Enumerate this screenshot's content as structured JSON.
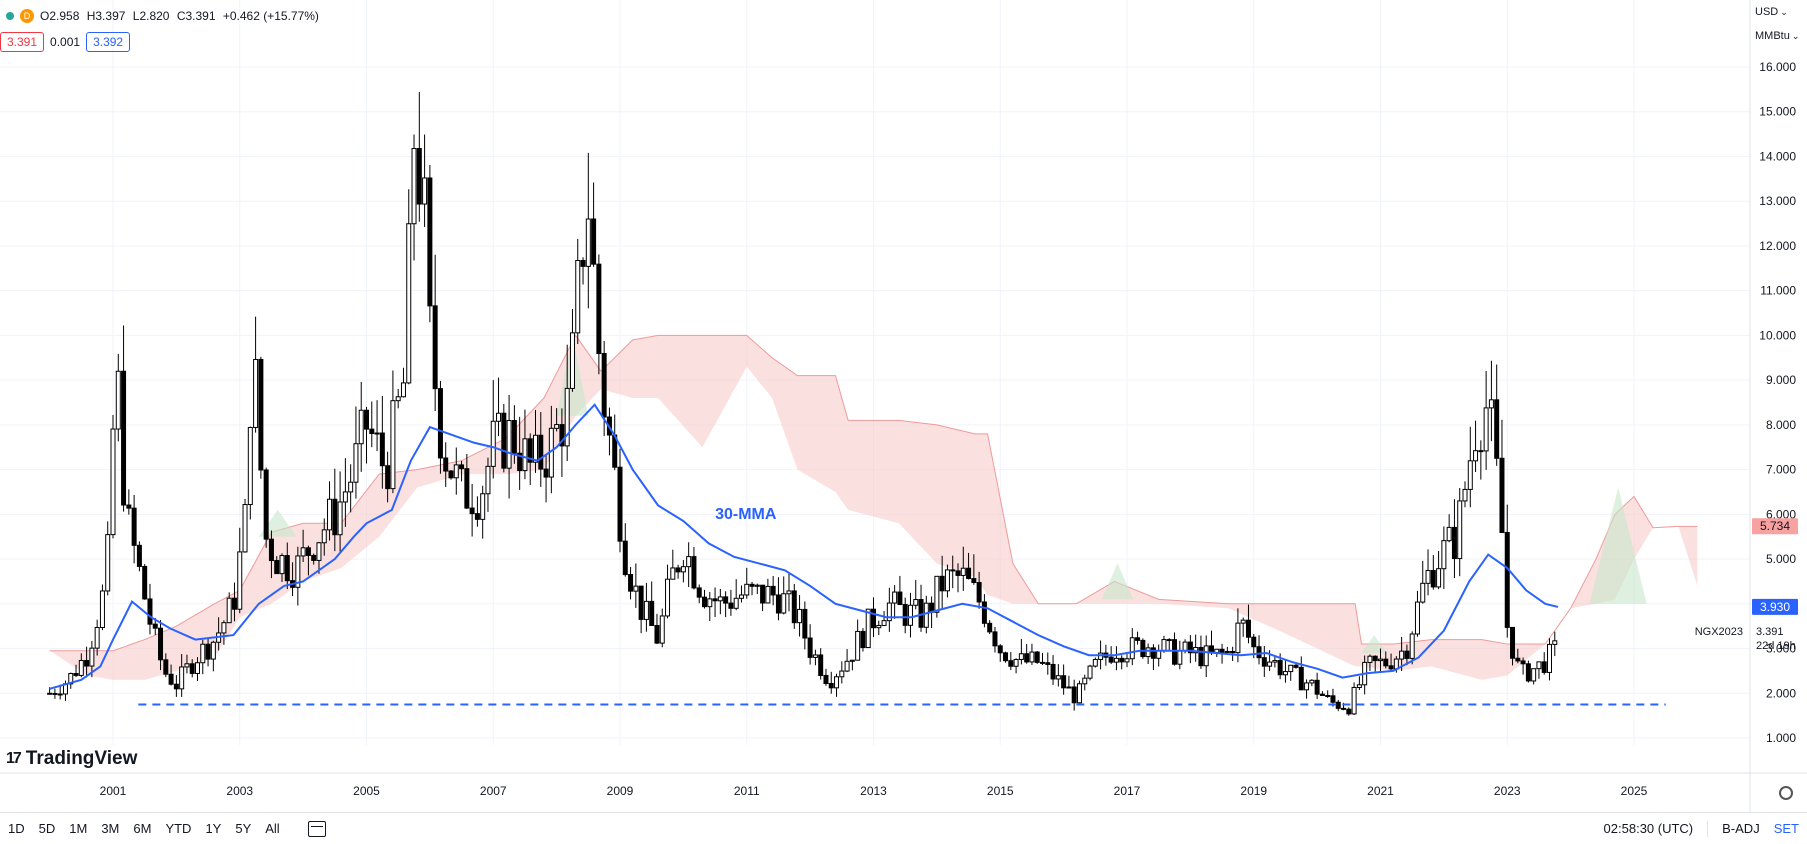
{
  "legend": {
    "interval_badge": "D",
    "open": "O2.958",
    "high": "H3.397",
    "low": "L2.820",
    "close": "C3.391",
    "change": "+0.462 (+15.77%)"
  },
  "quotes": {
    "bid": "3.391",
    "spread": "0.001",
    "ask": "3.392"
  },
  "units": {
    "currency": "USD",
    "unit": "MMBtu"
  },
  "colors": {
    "ma": "#2962ff",
    "cloud_red": "#f8c6c6",
    "cloud_green": "#c8e6c9",
    "candle": "#000000",
    "support": "#2962ff"
  },
  "chart_data": {
    "type": "candlestick",
    "x_labels": [
      "2001",
      "2003",
      "2005",
      "2007",
      "2009",
      "2011",
      "2013",
      "2015",
      "2017",
      "2019",
      "2021",
      "2023",
      "2025"
    ],
    "y_ticks": [
      "1.000",
      "2.000",
      "3.000",
      "4.000",
      "5.000",
      "6.000",
      "7.000",
      "8.000",
      "9.000",
      "10.000",
      "11.000",
      "12.000",
      "13.000",
      "14.000",
      "15.000",
      "16.000"
    ],
    "ylim": [
      1,
      16
    ],
    "xlim": [
      2000.0,
      2028.5
    ],
    "ma_label": "30-MMA",
    "support_level": 1.75,
    "symbol": "NGX2023",
    "last_price": "3.391",
    "countdown": "22d 19h",
    "ma_value_label": "3.930",
    "cloud_value_label": "5.734",
    "ma_series": [
      [
        2000.0,
        2.1
      ],
      [
        2000.5,
        2.3
      ],
      [
        2000.8,
        2.6
      ],
      [
        2001.0,
        3.2
      ],
      [
        2001.3,
        4.05
      ],
      [
        2001.6,
        3.7
      ],
      [
        2001.9,
        3.45
      ],
      [
        2002.3,
        3.2
      ],
      [
        2002.6,
        3.25
      ],
      [
        2002.9,
        3.3
      ],
      [
        2003.3,
        4.0
      ],
      [
        2003.7,
        4.4
      ],
      [
        2004.0,
        4.5
      ],
      [
        2004.5,
        5.0
      ],
      [
        2004.8,
        5.5
      ],
      [
        2005.0,
        5.8
      ],
      [
        2005.4,
        6.1
      ],
      [
        2005.7,
        7.2
      ],
      [
        2006.0,
        7.95
      ],
      [
        2006.4,
        7.75
      ],
      [
        2006.7,
        7.6
      ],
      [
        2007.0,
        7.5
      ],
      [
        2007.3,
        7.35
      ],
      [
        2007.7,
        7.2
      ],
      [
        2008.0,
        7.5
      ],
      [
        2008.3,
        8.0
      ],
      [
        2008.6,
        8.45
      ],
      [
        2008.9,
        7.8
      ],
      [
        2009.2,
        7.0
      ],
      [
        2009.6,
        6.2
      ],
      [
        2010.0,
        5.85
      ],
      [
        2010.4,
        5.35
      ],
      [
        2010.8,
        5.05
      ],
      [
        2011.2,
        4.9
      ],
      [
        2011.6,
        4.75
      ],
      [
        2012.0,
        4.4
      ],
      [
        2012.4,
        4.0
      ],
      [
        2012.8,
        3.85
      ],
      [
        2013.2,
        3.7
      ],
      [
        2013.6,
        3.7
      ],
      [
        2014.0,
        3.85
      ],
      [
        2014.4,
        4.0
      ],
      [
        2014.8,
        3.9
      ],
      [
        2015.2,
        3.6
      ],
      [
        2015.6,
        3.3
      ],
      [
        2016.0,
        3.05
      ],
      [
        2016.4,
        2.85
      ],
      [
        2016.8,
        2.85
      ],
      [
        2017.2,
        2.95
      ],
      [
        2017.6,
        2.95
      ],
      [
        2018.0,
        2.95
      ],
      [
        2018.4,
        2.9
      ],
      [
        2018.8,
        2.85
      ],
      [
        2019.2,
        2.9
      ],
      [
        2019.6,
        2.7
      ],
      [
        2020.0,
        2.55
      ],
      [
        2020.4,
        2.35
      ],
      [
        2020.8,
        2.45
      ],
      [
        2021.2,
        2.5
      ],
      [
        2021.6,
        2.8
      ],
      [
        2022.0,
        3.4
      ],
      [
        2022.4,
        4.5
      ],
      [
        2022.7,
        5.1
      ],
      [
        2023.0,
        4.8
      ],
      [
        2023.3,
        4.3
      ],
      [
        2023.6,
        4.0
      ],
      [
        2023.8,
        3.93
      ]
    ],
    "cloud_top": [
      [
        2000.0,
        2.95
      ],
      [
        2000.6,
        2.95
      ],
      [
        2001.0,
        2.95
      ],
      [
        2001.5,
        3.2
      ],
      [
        2002.0,
        3.5
      ],
      [
        2002.6,
        4.0
      ],
      [
        2003.0,
        4.3
      ],
      [
        2003.5,
        5.6
      ],
      [
        2004.0,
        5.8
      ],
      [
        2004.6,
        5.8
      ],
      [
        2005.2,
        6.9
      ],
      [
        2005.8,
        7.0
      ],
      [
        2006.5,
        7.2
      ],
      [
        2007.2,
        7.7
      ],
      [
        2007.8,
        8.6
      ],
      [
        2008.3,
        10.0
      ],
      [
        2008.7,
        9.2
      ],
      [
        2009.2,
        9.9
      ],
      [
        2009.6,
        10.0
      ],
      [
        2010.3,
        10.0
      ],
      [
        2011.0,
        10.0
      ],
      [
        2011.4,
        9.5
      ],
      [
        2011.8,
        9.1
      ],
      [
        2012.4,
        9.1
      ],
      [
        2012.6,
        8.1
      ],
      [
        2013.4,
        8.1
      ],
      [
        2014.0,
        8.0
      ],
      [
        2014.6,
        7.8
      ],
      [
        2014.8,
        7.8
      ],
      [
        2015.2,
        4.9
      ],
      [
        2015.6,
        4.0
      ],
      [
        2016.2,
        4.0
      ],
      [
        2016.8,
        4.5
      ],
      [
        2017.5,
        4.1
      ],
      [
        2018.6,
        4.0
      ],
      [
        2019.4,
        4.0
      ],
      [
        2020.0,
        4.0
      ],
      [
        2020.6,
        4.0
      ],
      [
        2020.7,
        3.1
      ],
      [
        2021.2,
        3.1
      ],
      [
        2021.8,
        3.2
      ],
      [
        2022.6,
        3.2
      ],
      [
        2023.0,
        3.1
      ],
      [
        2023.6,
        3.1
      ],
      [
        2024.0,
        3.9
      ],
      [
        2024.4,
        5.0
      ],
      [
        2024.7,
        6.0
      ],
      [
        2025.0,
        6.4
      ],
      [
        2025.3,
        5.7
      ],
      [
        2025.7,
        5.73
      ],
      [
        2026.0,
        5.73
      ]
    ],
    "cloud_bottom": [
      [
        2000.0,
        2.95
      ],
      [
        2000.6,
        2.4
      ],
      [
        2001.0,
        2.3
      ],
      [
        2001.5,
        2.3
      ],
      [
        2002.0,
        2.5
      ],
      [
        2002.6,
        2.8
      ],
      [
        2003.0,
        3.7
      ],
      [
        2003.5,
        4.0
      ],
      [
        2004.0,
        4.5
      ],
      [
        2004.6,
        4.8
      ],
      [
        2005.2,
        5.5
      ],
      [
        2005.8,
        6.6
      ],
      [
        2006.5,
        6.9
      ],
      [
        2007.2,
        6.9
      ],
      [
        2007.8,
        7.0
      ],
      [
        2008.3,
        8.2
      ],
      [
        2008.7,
        8.8
      ],
      [
        2009.2,
        8.6
      ],
      [
        2009.6,
        8.6
      ],
      [
        2010.3,
        7.5
      ],
      [
        2011.0,
        9.3
      ],
      [
        2011.4,
        8.6
      ],
      [
        2011.8,
        7.0
      ],
      [
        2012.4,
        6.5
      ],
      [
        2012.6,
        6.1
      ],
      [
        2013.4,
        5.8
      ],
      [
        2014.0,
        4.9
      ],
      [
        2014.6,
        4.6
      ],
      [
        2014.8,
        4.2
      ],
      [
        2015.2,
        4.0
      ],
      [
        2015.6,
        4.0
      ],
      [
        2016.2,
        4.0
      ],
      [
        2016.8,
        4.0
      ],
      [
        2017.5,
        4.0
      ],
      [
        2018.6,
        3.9
      ],
      [
        2019.4,
        3.4
      ],
      [
        2020.0,
        3.0
      ],
      [
        2020.6,
        2.6
      ],
      [
        2020.7,
        2.6
      ],
      [
        2021.2,
        2.5
      ],
      [
        2021.8,
        2.6
      ],
      [
        2022.6,
        2.3
      ],
      [
        2023.0,
        2.4
      ],
      [
        2023.6,
        3.1
      ],
      [
        2024.0,
        3.9
      ],
      [
        2024.4,
        4.0
      ],
      [
        2024.7,
        4.1
      ],
      [
        2025.0,
        5.0
      ],
      [
        2025.3,
        5.7
      ],
      [
        2025.7,
        5.73
      ],
      [
        2026.0,
        4.4
      ]
    ],
    "price_path": [
      [
        2000.0,
        2.0
      ],
      [
        2000.3,
        2.3
      ],
      [
        2000.6,
        2.9
      ],
      [
        2000.9,
        4.5
      ],
      [
        2001.05,
        9.5
      ],
      [
        2001.2,
        6.0
      ],
      [
        2001.4,
        4.8
      ],
      [
        2001.6,
        3.5
      ],
      [
        2001.8,
        2.5
      ],
      [
        2002.0,
        2.2
      ],
      [
        2002.3,
        2.8
      ],
      [
        2002.6,
        3.2
      ],
      [
        2002.9,
        4.0
      ],
      [
        2003.1,
        6.0
      ],
      [
        2003.2,
        10.0
      ],
      [
        2003.4,
        5.5
      ],
      [
        2003.6,
        5.0
      ],
      [
        2003.9,
        4.8
      ],
      [
        2004.2,
        5.5
      ],
      [
        2004.5,
        6.0
      ],
      [
        2004.8,
        7.0
      ],
      [
        2005.0,
        8.0
      ],
      [
        2005.3,
        7.0
      ],
      [
        2005.6,
        9.0
      ],
      [
        2005.75,
        14.5
      ],
      [
        2005.9,
        13.0
      ],
      [
        2006.0,
        10.0
      ],
      [
        2006.2,
        7.5
      ],
      [
        2006.5,
        6.5
      ],
      [
        2006.8,
        6.5
      ],
      [
        2007.0,
        7.5
      ],
      [
        2007.3,
        7.8
      ],
      [
        2007.6,
        7.0
      ],
      [
        2007.9,
        7.5
      ],
      [
        2008.2,
        8.5
      ],
      [
        2008.4,
        12.0
      ],
      [
        2008.5,
        13.0
      ],
      [
        2008.7,
        9.0
      ],
      [
        2008.9,
        7.0
      ],
      [
        2009.1,
        5.0
      ],
      [
        2009.3,
        4.0
      ],
      [
        2009.6,
        3.2
      ],
      [
        2009.8,
        4.5
      ],
      [
        2010.0,
        5.3
      ],
      [
        2010.3,
        4.3
      ],
      [
        2010.6,
        4.0
      ],
      [
        2010.9,
        4.2
      ],
      [
        2011.2,
        4.2
      ],
      [
        2011.5,
        4.2
      ],
      [
        2011.8,
        3.7
      ],
      [
        2012.0,
        3.0
      ],
      [
        2012.3,
        2.3
      ],
      [
        2012.6,
        2.8
      ],
      [
        2012.9,
        3.5
      ],
      [
        2013.2,
        4.0
      ],
      [
        2013.5,
        3.8
      ],
      [
        2013.8,
        3.7
      ],
      [
        2014.1,
        4.5
      ],
      [
        2014.4,
        4.6
      ],
      [
        2014.7,
        4.0
      ],
      [
        2015.0,
        3.0
      ],
      [
        2015.3,
        2.7
      ],
      [
        2015.6,
        2.7
      ],
      [
        2015.9,
        2.3
      ],
      [
        2016.2,
        1.9
      ],
      [
        2016.5,
        2.6
      ],
      [
        2016.8,
        3.0
      ],
      [
        2017.1,
        3.0
      ],
      [
        2017.4,
        3.1
      ],
      [
        2017.7,
        2.9
      ],
      [
        2018.0,
        2.9
      ],
      [
        2018.3,
        2.8
      ],
      [
        2018.6,
        2.9
      ],
      [
        2018.8,
        3.6
      ],
      [
        2019.0,
        3.0
      ],
      [
        2019.3,
        2.7
      ],
      [
        2019.6,
        2.4
      ],
      [
        2019.9,
        2.2
      ],
      [
        2020.2,
        1.8
      ],
      [
        2020.5,
        1.7
      ],
      [
        2020.8,
        2.6
      ],
      [
        2021.1,
        2.7
      ],
      [
        2021.4,
        3.0
      ],
      [
        2021.7,
        4.5
      ],
      [
        2021.9,
        5.0
      ],
      [
        2022.2,
        5.5
      ],
      [
        2022.5,
        8.0
      ],
      [
        2022.7,
        8.5
      ],
      [
        2022.9,
        6.0
      ],
      [
        2023.0,
        3.5
      ],
      [
        2023.2,
        2.4
      ],
      [
        2023.5,
        2.6
      ],
      [
        2023.8,
        3.0
      ]
    ]
  },
  "timeframes": [
    "1D",
    "5D",
    "1M",
    "3M",
    "6M",
    "YTD",
    "1Y",
    "5Y",
    "All"
  ],
  "status": {
    "time": "02:58:30 (UTC)",
    "adj": "B-ADJ",
    "set": "SET"
  },
  "brand": "TradingView"
}
